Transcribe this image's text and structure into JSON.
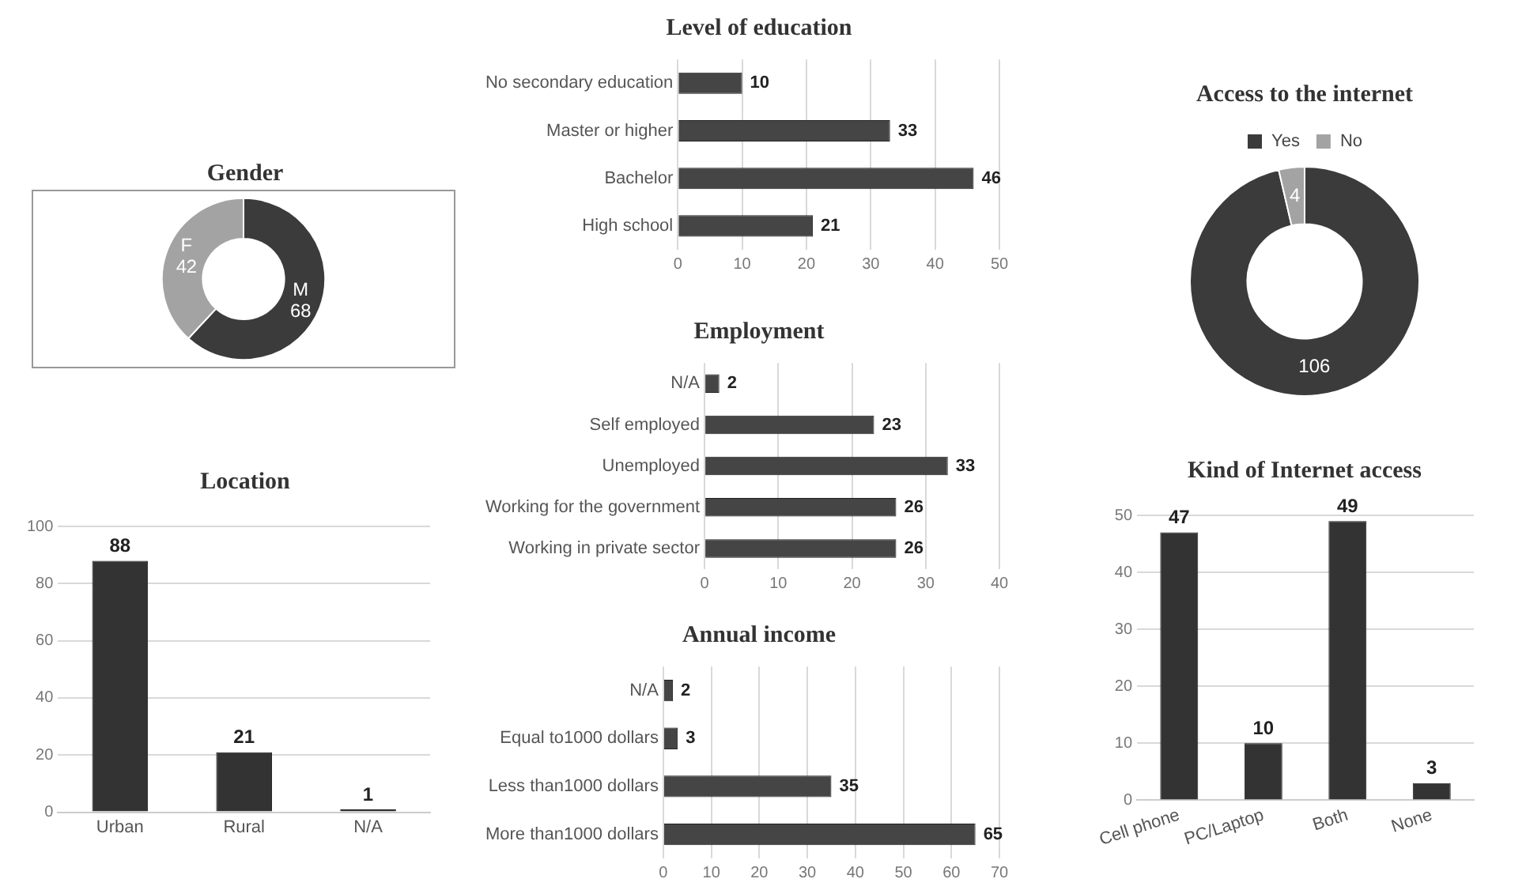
{
  "chart_data": [
    {
      "type": "donut",
      "title": "Gender",
      "categories": [
        "M",
        "F"
      ],
      "values": [
        68,
        42
      ],
      "colors": [
        "#3b3b3b",
        "#a3a3a3"
      ],
      "data_labels": true,
      "legend": false
    },
    {
      "type": "bar",
      "orientation": "horizontal",
      "title": "Level of education",
      "categories": [
        "No secondary education",
        "Master or higher",
        "Bachelor",
        "High school"
      ],
      "values": [
        10,
        33,
        46,
        21
      ],
      "color": "#454545",
      "xlim": [
        0,
        50
      ],
      "xticks": [
        0,
        10,
        20,
        30,
        40,
        50
      ],
      "grid": "x",
      "data_labels": true
    },
    {
      "type": "donut",
      "title": "Access to the internet",
      "categories": [
        "Yes",
        "No"
      ],
      "values": [
        106,
        4
      ],
      "colors": [
        "#3b3b3b",
        "#a3a3a3"
      ],
      "data_labels": true,
      "legend": "top"
    },
    {
      "type": "bar",
      "title": "Location",
      "categories": [
        "Urban",
        "Rural",
        "N/A"
      ],
      "values": [
        88,
        21,
        1
      ],
      "color": "#333333",
      "ylim": [
        0,
        100
      ],
      "yticks": [
        0,
        20,
        40,
        60,
        80,
        100
      ],
      "grid": "y",
      "data_labels": true
    },
    {
      "type": "bar",
      "orientation": "horizontal",
      "title": "Employment",
      "categories": [
        "N/A",
        "Self employed",
        "Unemployed",
        "Working for the government",
        "Working in private sector"
      ],
      "values": [
        2,
        23,
        33,
        26,
        26
      ],
      "color": "#454545",
      "xlim": [
        0,
        40
      ],
      "xticks": [
        0,
        10,
        20,
        30,
        40
      ],
      "grid": "x",
      "data_labels": true
    },
    {
      "type": "bar",
      "title": "Kind of  Internet access",
      "categories": [
        "Cell phone",
        "PC/Laptop",
        "Both",
        "None"
      ],
      "values": [
        47,
        10,
        49,
        3
      ],
      "color": "#333333",
      "ylim": [
        0,
        50
      ],
      "yticks": [
        0,
        10,
        20,
        30,
        40,
        50
      ],
      "grid": "y",
      "data_labels": true
    },
    {
      "type": "bar",
      "orientation": "horizontal",
      "title": "Annual income",
      "categories": [
        "N/A",
        "Equal to1000 dollars",
        "Less than1000 dollars",
        "More than1000 dollars"
      ],
      "values": [
        2,
        3,
        35,
        65
      ],
      "color": "#454545",
      "xlim": [
        0,
        70
      ],
      "xticks": [
        0,
        10,
        20,
        30,
        40,
        50,
        60,
        70
      ],
      "grid": "x",
      "data_labels": true
    }
  ]
}
